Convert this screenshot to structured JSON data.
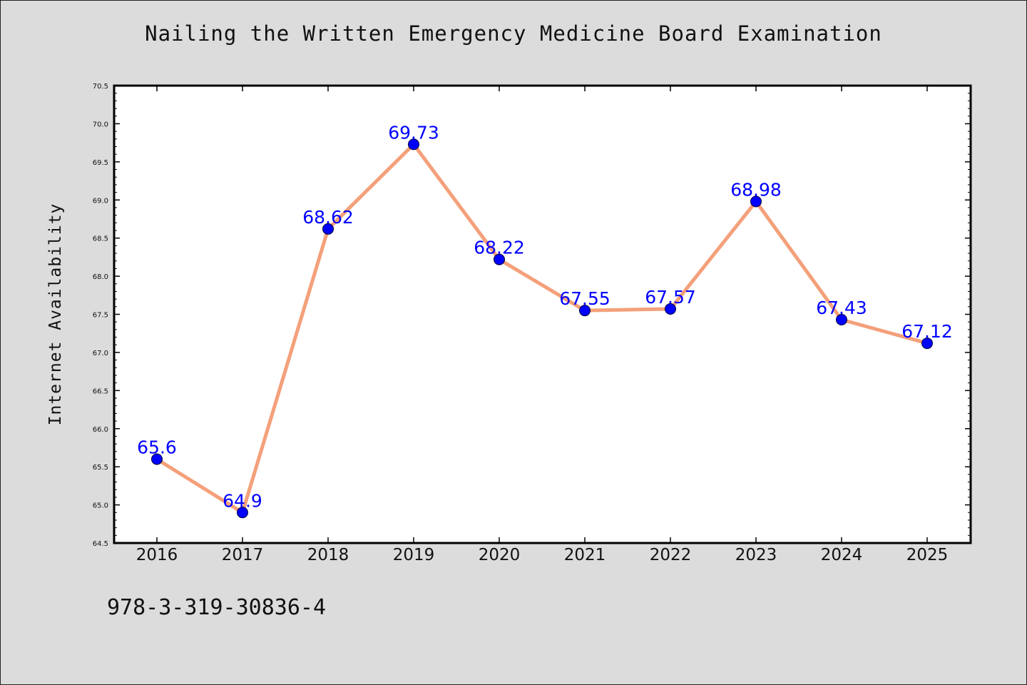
{
  "chart_data": {
    "type": "line",
    "title": "Nailing the Written Emergency Medicine Board Examination",
    "xlabel": "",
    "ylabel": "Internet Availability",
    "categories": [
      "2016",
      "2017",
      "2018",
      "2019",
      "2020",
      "2021",
      "2022",
      "2023",
      "2024",
      "2025"
    ],
    "series": [
      {
        "values": [
          65.6,
          64.9,
          68.62,
          69.73,
          68.22,
          67.55,
          67.57,
          68.98,
          67.43,
          67.12
        ],
        "labels": [
          "65.6",
          "64.9",
          "68.62",
          "69.73",
          "68.22",
          "67.55",
          "67.57",
          "68.98",
          "67.43",
          "67.12"
        ],
        "line_color": "#f4a07a",
        "marker_color": "#0000ff"
      }
    ],
    "ylim": [
      64.5,
      70.5
    ],
    "yticks": [
      "64.5",
      "65.0",
      "65.5",
      "66.0",
      "66.5",
      "67.0",
      "67.5",
      "68.0",
      "68.5",
      "69.0",
      "69.5",
      "70.0",
      "70.5"
    ],
    "grid": false,
    "legend": "none"
  },
  "footer": {
    "isbn": "978-3-319-30836-4"
  },
  "colors": {
    "background": "#dcdcdc",
    "plot_background": "#ffffff",
    "line": "#f4a07a",
    "marker": "#0000ff",
    "label": "#0000ff"
  }
}
